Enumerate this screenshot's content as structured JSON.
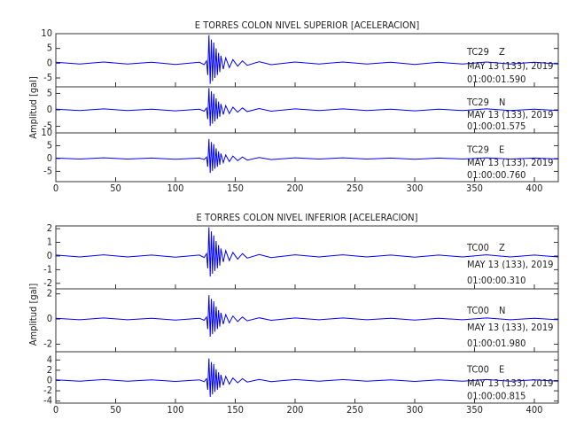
{
  "chart_data": [
    {
      "type": "line",
      "title": "E TORRES COLON NIVEL SUPERIOR [ACELERACION]",
      "y_label": "Amplitud [gal]",
      "x": [
        0,
        20,
        40,
        60,
        80,
        100,
        120,
        124,
        126,
        127,
        128,
        129,
        130,
        131,
        132,
        133,
        134,
        135,
        136,
        137,
        138,
        140,
        142,
        145,
        148,
        152,
        156,
        160,
        170,
        180,
        200,
        220,
        240,
        260,
        280,
        300,
        320,
        340,
        360,
        380,
        400,
        420
      ],
      "xlim": [
        0,
        420
      ],
      "xticks": [
        0,
        50,
        100,
        150,
        200,
        250,
        300,
        350,
        400
      ],
      "panels": [
        {
          "station": "TC29",
          "component": "Z",
          "date": "MAY 13 (133), 2019",
          "time": "01:00:01.590",
          "color": "#0000ff",
          "ylim": [
            -8,
            10
          ],
          "yticks": [
            -5,
            0,
            5,
            10
          ],
          "values": [
            0.3,
            -0.3,
            0.4,
            -0.3,
            0.3,
            -0.4,
            0.3,
            -0.5,
            0.8,
            -4,
            9.5,
            -7,
            8,
            -6,
            7,
            -5,
            5,
            -4,
            3.5,
            -3,
            2.5,
            -2,
            1.8,
            -1.5,
            1.2,
            -1,
            0.8,
            -0.7,
            0.5,
            -0.5,
            0.4,
            -0.3,
            0.4,
            -0.3,
            0.3,
            -0.4,
            0.3,
            -0.3,
            0.4,
            -0.3,
            0.3,
            -0.3
          ]
        },
        {
          "station": "TC29",
          "component": "N",
          "date": "MAY 13 (133), 2019",
          "time": "01:00:01.575",
          "color": "#0000ff",
          "ylim": [
            -7,
            7
          ],
          "yticks": [
            -5,
            0,
            5
          ],
          "values": [
            0.2,
            -0.2,
            0.3,
            -0.2,
            0.2,
            -0.3,
            0.2,
            -0.4,
            0.6,
            -2.8,
            6.6,
            -4.9,
            5.6,
            -4.2,
            4.9,
            -3.5,
            3.5,
            -2.8,
            2.5,
            -2.1,
            1.8,
            -1.4,
            1.3,
            -1.1,
            0.8,
            -0.7,
            0.6,
            -0.5,
            0.4,
            -0.4,
            0.3,
            -0.2,
            0.3,
            -0.2,
            0.2,
            -0.3,
            0.2,
            -0.2,
            0.3,
            -0.2,
            0.2,
            -0.2
          ]
        },
        {
          "station": "TC29",
          "component": "E",
          "date": "MAY 13 (133), 2019",
          "time": "01:00:00.760",
          "color": "#0000ff",
          "ylim": [
            -9,
            10
          ],
          "yticks": [
            -5,
            0,
            5,
            10
          ],
          "values": [
            0.2,
            -0.2,
            0.3,
            -0.2,
            0.2,
            -0.3,
            0.2,
            -0.4,
            0.6,
            -3.2,
            7.6,
            -5.6,
            6.4,
            -4.8,
            5.6,
            -4,
            4,
            -3.2,
            2.8,
            -2.4,
            2,
            -1.6,
            1.4,
            -1.2,
            1,
            -0.8,
            0.6,
            -0.6,
            0.4,
            -0.4,
            0.3,
            -0.2,
            0.3,
            -0.2,
            0.2,
            -0.3,
            0.2,
            -0.2,
            0.3,
            -0.2,
            0.2,
            -0.2
          ]
        }
      ]
    },
    {
      "type": "line",
      "title": "E TORRES COLON NIVEL INFERIOR [ACELERACION]",
      "y_label": "Amplitud [gal]",
      "x": [
        0,
        20,
        40,
        60,
        80,
        100,
        120,
        124,
        126,
        127,
        128,
        129,
        130,
        131,
        132,
        133,
        134,
        135,
        136,
        137,
        138,
        140,
        142,
        145,
        148,
        152,
        156,
        160,
        170,
        180,
        200,
        220,
        240,
        260,
        280,
        300,
        320,
        340,
        360,
        380,
        400,
        420
      ],
      "xlim": [
        0,
        420
      ],
      "xticks": [
        0,
        50,
        100,
        150,
        200,
        250,
        300,
        350,
        400
      ],
      "panels": [
        {
          "station": "TC00",
          "component": "Z",
          "date": "MAY 13 (133), 2019",
          "time": "01:00:00.310",
          "color": "#0000ff",
          "ylim": [
            -2.4,
            2.2
          ],
          "yticks": [
            -2,
            -1,
            0,
            1,
            2
          ],
          "values": [
            0.07,
            -0.07,
            0.09,
            -0.07,
            0.07,
            -0.09,
            0.07,
            -0.11,
            0.18,
            -0.9,
            2.1,
            -1.5,
            1.8,
            -1.3,
            1.5,
            -1.1,
            1.1,
            -0.9,
            0.8,
            -0.7,
            0.55,
            -0.44,
            0.4,
            -0.33,
            0.26,
            -0.22,
            0.18,
            -0.15,
            0.11,
            -0.11,
            0.09,
            -0.07,
            0.09,
            -0.07,
            0.07,
            -0.09,
            0.07,
            -0.07,
            0.09,
            -0.07,
            0.07,
            -0.07
          ]
        },
        {
          "station": "TC00",
          "component": "N",
          "date": "MAY 13 (133), 2019",
          "time": "01:00:01.980",
          "color": "#0000ff",
          "ylim": [
            -2.6,
            2.4
          ],
          "yticks": [
            -2,
            0,
            2
          ],
          "values": [
            0.06,
            -0.06,
            0.08,
            -0.06,
            0.06,
            -0.08,
            0.06,
            -0.1,
            0.16,
            -0.8,
            1.9,
            -1.4,
            1.6,
            -1.2,
            1.4,
            -1,
            1,
            -0.8,
            0.7,
            -0.6,
            0.5,
            -0.4,
            0.36,
            -0.3,
            0.24,
            -0.2,
            0.16,
            -0.14,
            0.1,
            -0.1,
            0.08,
            -0.06,
            0.08,
            -0.06,
            0.06,
            -0.08,
            0.06,
            -0.06,
            0.08,
            -0.06,
            0.06,
            -0.06
          ]
        },
        {
          "station": "TC00",
          "component": "E",
          "date": "MAY 13 (133), 2019",
          "time": "01:00:00.815",
          "color": "#0000ff",
          "ylim": [
            -4.4,
            5.6
          ],
          "yticks": [
            -4,
            -2,
            0,
            2,
            4
          ],
          "values": [
            0.14,
            -0.14,
            0.18,
            -0.14,
            0.14,
            -0.18,
            0.14,
            -0.22,
            0.36,
            -1.8,
            4.3,
            -3.2,
            3.6,
            -2.7,
            3.2,
            -2.2,
            2.2,
            -1.8,
            1.6,
            -1.4,
            1.1,
            -0.9,
            0.8,
            -0.7,
            0.5,
            -0.45,
            0.36,
            -0.3,
            0.22,
            -0.22,
            0.18,
            -0.14,
            0.18,
            -0.14,
            0.14,
            -0.18,
            0.14,
            -0.14,
            0.18,
            -0.14,
            0.14,
            -0.14
          ]
        }
      ]
    }
  ]
}
